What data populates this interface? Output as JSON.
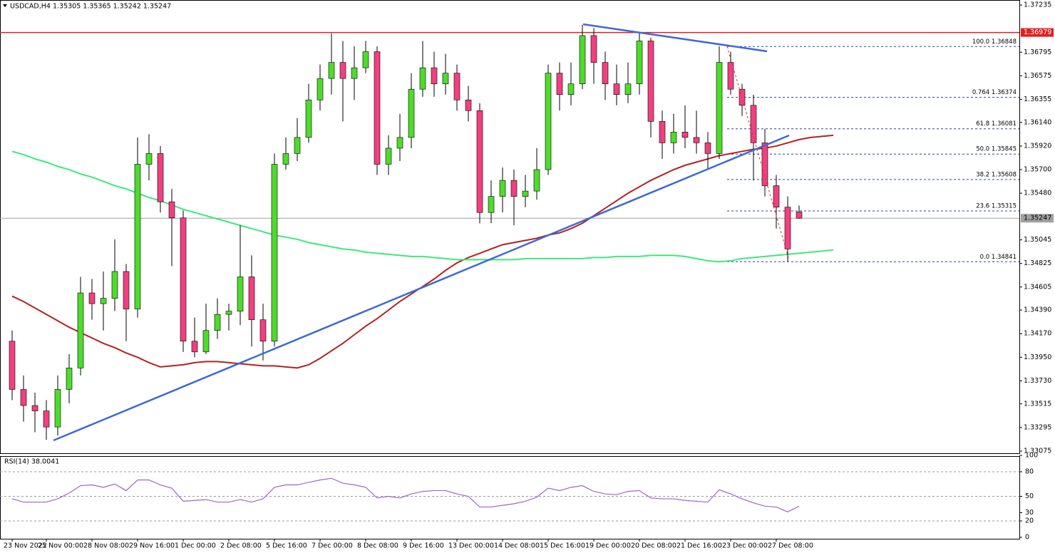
{
  "chart_data": {
    "type": "candlestick",
    "title": "USDCAD,H4  1.35305 1.35365 1.35242 1.35247",
    "categories": [
      "23 Nov 2022",
      null,
      null,
      "25 Nov 00:00",
      null,
      null,
      null,
      "28 Nov 08:00",
      null,
      null,
      null,
      "29 Nov 16:00",
      null,
      null,
      null,
      "1 Dec 00:00",
      null,
      null,
      null,
      "2 Dec 08:00",
      null,
      null,
      null,
      "5 Dec 16:00",
      null,
      null,
      null,
      "7 Dec 00:00",
      null,
      null,
      null,
      "8 Dec 08:00",
      null,
      null,
      null,
      "9 Dec 16:00",
      null,
      null,
      null,
      "13 Dec 00:00",
      null,
      null,
      null,
      "14 Dec 08:00",
      null,
      null,
      null,
      "15 Dec 16:00",
      null,
      null,
      null,
      "19 Dec 00:00",
      null,
      null,
      null,
      "20 Dec 08:00",
      null,
      null,
      null,
      "21 Dec 16:00",
      null,
      null,
      null,
      "23 Dec 00:00",
      null,
      null,
      null,
      "27 Dec 08:00",
      null,
      null,
      null,
      null,
      null
    ],
    "ohlc": [
      [
        1.341,
        1.342,
        1.3355,
        1.3365
      ],
      [
        1.3365,
        1.3378,
        1.3335,
        1.335
      ],
      [
        1.335,
        1.3362,
        1.3325,
        1.3345
      ],
      [
        1.3345,
        1.3355,
        1.3318,
        1.333
      ],
      [
        1.333,
        1.3378,
        1.3322,
        1.3365
      ],
      [
        1.3365,
        1.3398,
        1.3352,
        1.3385
      ],
      [
        1.3385,
        1.347,
        1.3378,
        1.3455
      ],
      [
        1.3455,
        1.3468,
        1.343,
        1.3445
      ],
      [
        1.3445,
        1.3475,
        1.342,
        1.345
      ],
      [
        1.345,
        1.3505,
        1.3438,
        1.3475
      ],
      [
        1.3475,
        1.3482,
        1.341,
        1.344
      ],
      [
        1.344,
        1.36,
        1.3432,
        1.3575
      ],
      [
        1.3575,
        1.3603,
        1.356,
        1.3585
      ],
      [
        1.3585,
        1.3592,
        1.353,
        1.354
      ],
      [
        1.354,
        1.3552,
        1.348,
        1.3525
      ],
      [
        1.3525,
        1.3532,
        1.34,
        1.341
      ],
      [
        1.341,
        1.3432,
        1.3395,
        1.34
      ],
      [
        1.34,
        1.3445,
        1.3398,
        1.342
      ],
      [
        1.342,
        1.345,
        1.3412,
        1.3435
      ],
      [
        1.3435,
        1.3445,
        1.342,
        1.3438
      ],
      [
        1.3438,
        1.3518,
        1.3425,
        1.347
      ],
      [
        1.347,
        1.349,
        1.3405,
        1.343
      ],
      [
        1.343,
        1.3445,
        1.3392,
        1.341
      ],
      [
        1.341,
        1.3585,
        1.3405,
        1.3575
      ],
      [
        1.3575,
        1.36,
        1.357,
        1.3585
      ],
      [
        1.3585,
        1.3618,
        1.3578,
        1.36
      ],
      [
        1.36,
        1.365,
        1.3595,
        1.3635
      ],
      [
        1.3635,
        1.3668,
        1.3625,
        1.3655
      ],
      [
        1.3655,
        1.3697,
        1.364,
        1.367
      ],
      [
        1.367,
        1.369,
        1.3615,
        1.3655
      ],
      [
        1.3655,
        1.3685,
        1.3635,
        1.3665
      ],
      [
        1.3665,
        1.369,
        1.366,
        1.368
      ],
      [
        1.368,
        1.3685,
        1.3565,
        1.3575
      ],
      [
        1.3575,
        1.3602,
        1.3565,
        1.359
      ],
      [
        1.359,
        1.3622,
        1.3578,
        1.36
      ],
      [
        1.36,
        1.366,
        1.359,
        1.3645
      ],
      [
        1.3645,
        1.369,
        1.3638,
        1.3665
      ],
      [
        1.3665,
        1.368,
        1.3638,
        1.365
      ],
      [
        1.365,
        1.3678,
        1.364,
        1.366
      ],
      [
        1.366,
        1.3668,
        1.3625,
        1.3635
      ],
      [
        1.3635,
        1.3648,
        1.3615,
        1.3625
      ],
      [
        1.3625,
        1.3632,
        1.352,
        1.353
      ],
      [
        1.353,
        1.356,
        1.352,
        1.3545
      ],
      [
        1.3545,
        1.3572,
        1.353,
        1.356
      ],
      [
        1.356,
        1.357,
        1.3518,
        1.3545
      ],
      [
        1.3545,
        1.3565,
        1.3535,
        1.355
      ],
      [
        1.355,
        1.359,
        1.3542,
        1.357
      ],
      [
        1.357,
        1.3668,
        1.3565,
        1.366
      ],
      [
        1.366,
        1.367,
        1.3625,
        1.364
      ],
      [
        1.364,
        1.367,
        1.363,
        1.365
      ],
      [
        1.365,
        1.3705,
        1.3645,
        1.3695
      ],
      [
        1.3695,
        1.3702,
        1.365,
        1.367
      ],
      [
        1.367,
        1.368,
        1.3635,
        1.365
      ],
      [
        1.365,
        1.3668,
        1.363,
        1.364
      ],
      [
        1.364,
        1.367,
        1.3632,
        1.365
      ],
      [
        1.365,
        1.3698,
        1.364,
        1.369
      ],
      [
        1.369,
        1.3693,
        1.36,
        1.3615
      ],
      [
        1.3615,
        1.3625,
        1.358,
        1.3595
      ],
      [
        1.3595,
        1.3622,
        1.3585,
        1.3605
      ],
      [
        1.3605,
        1.363,
        1.359,
        1.36
      ],
      [
        1.36,
        1.3625,
        1.3585,
        1.3595
      ],
      [
        1.3595,
        1.3605,
        1.357,
        1.3585
      ],
      [
        1.3585,
        1.3685,
        1.358,
        1.367
      ],
      [
        1.367,
        1.368,
        1.364,
        1.3645
      ],
      [
        1.3645,
        1.365,
        1.362,
        1.363
      ],
      [
        1.363,
        1.364,
        1.356,
        1.3595
      ],
      [
        1.3595,
        1.3608,
        1.3545,
        1.3555
      ],
      [
        1.3555,
        1.3565,
        1.3515,
        1.3535
      ],
      [
        1.3535,
        1.3545,
        1.34841,
        1.3496
      ],
      [
        1.35305,
        1.35365,
        1.35242,
        1.35247
      ],
      null,
      null,
      null
    ],
    "up_color": "#4ddc2c",
    "down_color": "#f23f7f",
    "ma_lines": [
      {
        "color": "#b22222",
        "values": [
          1.3452,
          1.3447,
          1.3441,
          1.3435,
          1.3429,
          1.3423,
          1.3418,
          1.3413,
          1.3408,
          1.3404,
          1.3399,
          1.3395,
          1.339,
          1.3386,
          1.3387,
          1.3388,
          1.339,
          1.3391,
          1.3391,
          1.339,
          1.3389,
          1.3388,
          1.3387,
          1.3387,
          1.3386,
          1.3385,
          1.3388,
          1.3394,
          1.3401,
          1.3408,
          1.3416,
          1.3424,
          1.3431,
          1.3439,
          1.3447,
          1.3454,
          1.3461,
          1.3468,
          1.3476,
          1.3483,
          1.3488,
          1.3492,
          1.3496,
          1.35,
          1.3502,
          1.3504,
          1.3506,
          1.3509,
          1.3511,
          1.3515,
          1.352,
          1.3527,
          1.3534,
          1.3541,
          1.3548,
          1.3554,
          1.356,
          1.3565,
          1.357,
          1.3574,
          1.3577,
          1.358,
          1.3583,
          1.3585,
          1.3587,
          1.3589,
          1.359,
          1.3592,
          1.3595,
          1.3598,
          1.36,
          1.3601,
          1.3602
        ]
      },
      {
        "color": "#3ee87a",
        "values": [
          1.3587,
          1.3584,
          1.358,
          1.3577,
          1.3573,
          1.357,
          1.3566,
          1.3563,
          1.3559,
          1.3555,
          1.3552,
          1.3548,
          1.3544,
          1.3541,
          1.3537,
          1.3533,
          1.353,
          1.3527,
          1.3524,
          1.3521,
          1.3518,
          1.3515,
          1.3512,
          1.3509,
          1.3507,
          1.3505,
          1.3502,
          1.35,
          1.3498,
          1.3496,
          1.3495,
          1.3493,
          1.3492,
          1.3491,
          1.349,
          1.3489,
          1.3489,
          1.3488,
          1.3487,
          1.3486,
          1.3486,
          1.3486,
          1.3486,
          1.3486,
          1.3486,
          1.3487,
          1.3487,
          1.3487,
          1.3487,
          1.3487,
          1.3487,
          1.3488,
          1.3488,
          1.3489,
          1.3489,
          1.3489,
          1.349,
          1.349,
          1.349,
          1.3489,
          1.3487,
          1.3485,
          1.3484,
          1.3485,
          1.3487,
          1.3488,
          1.3489,
          1.349,
          1.3491,
          1.3492,
          1.3493,
          1.3494,
          1.3495
        ]
      }
    ],
    "ylim": [
      1.33055,
      1.37282
    ],
    "yticks": [
      1.37235,
      1.36795,
      1.36575,
      1.36355,
      {
        "value": 1.3614,
        "label": "1.36140"
      },
      {
        "value": 1.3592,
        "label": "1.35920"
      },
      {
        "value": 1.357,
        "label": "1.35700"
      },
      {
        "value": 1.3548,
        "label": "1.35480"
      },
      1.35045,
      1.34825,
      1.34605,
      {
        "value": 1.3439,
        "label": "1.34390"
      },
      {
        "value": 1.3417,
        "label": "1.34170"
      },
      {
        "value": 1.3395,
        "label": "1.33950"
      },
      {
        "value": 1.3373,
        "label": "1.33730"
      },
      1.33515,
      1.33295,
      1.33075
    ],
    "resistance": {
      "value": 1.36979,
      "color": "#e02020"
    },
    "last_price": {
      "value": 1.35247,
      "color": "#a0a0a0"
    },
    "fib_levels": [
      {
        "label": "100.0 1.36848",
        "value": 1.36848
      },
      {
        "label": "0.764 1.36374",
        "value": 1.36374
      },
      {
        "label": "61.8 1.36081",
        "value": 1.36081
      },
      {
        "label": "50.0 1.35845",
        "value": 1.35845
      },
      {
        "label": "38.2 1.35608",
        "value": 1.35608
      },
      {
        "label": "23.6 1.35315",
        "value": 1.35315
      },
      {
        "label": "0.0 1.34841",
        "value": 1.34841
      }
    ],
    "rsi": {
      "title": "RSI(14) 38.0041",
      "color": "#9966cc",
      "ylim": [
        0,
        100
      ],
      "yticks": [
        100,
        80,
        50,
        30,
        20,
        0
      ],
      "levels": [
        80,
        50,
        20
      ],
      "values": [
        47,
        43,
        43,
        43,
        47,
        54,
        63,
        64,
        61,
        65,
        57,
        70,
        70,
        64,
        60,
        44,
        45,
        46,
        43,
        43,
        46,
        43,
        47,
        61,
        64,
        64,
        67,
        70,
        72,
        66,
        64,
        61,
        48,
        50,
        48,
        53,
        56,
        57,
        57,
        53,
        50,
        37,
        37,
        39,
        41,
        44,
        49,
        60,
        57,
        61,
        63,
        56,
        53,
        52,
        56,
        57,
        48,
        47,
        47,
        45,
        44,
        43,
        58,
        53,
        47,
        42,
        38,
        37,
        31,
        38,
        null,
        null,
        null
      ]
    }
  }
}
